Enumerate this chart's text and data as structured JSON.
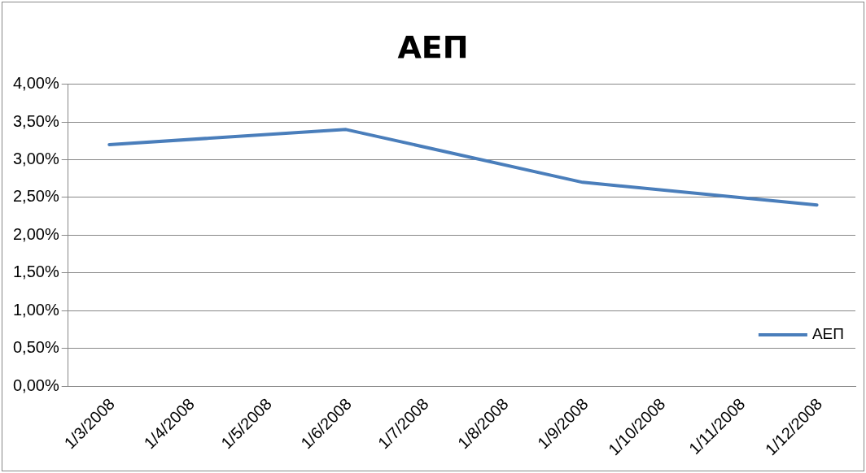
{
  "chart_data": {
    "type": "line",
    "title": "ΑΕΠ",
    "x": [
      "2008-03-01",
      "2008-06-01",
      "2008-09-01",
      "2008-12-01"
    ],
    "series": [
      {
        "name": "ΑΕΠ",
        "color": "#4a7ebb",
        "values": [
          3.2,
          3.4,
          2.7,
          2.4
        ]
      }
    ],
    "xlim": [
      "2008-02-14",
      "2008-12-16"
    ],
    "xticks": [
      {
        "value": "2008-03-01",
        "label": "1/3/2008"
      },
      {
        "value": "2008-04-01",
        "label": "1/4/2008"
      },
      {
        "value": "2008-05-01",
        "label": "1/5/2008"
      },
      {
        "value": "2008-06-01",
        "label": "1/6/2008"
      },
      {
        "value": "2008-07-01",
        "label": "1/7/2008"
      },
      {
        "value": "2008-08-01",
        "label": "1/8/2008"
      },
      {
        "value": "2008-09-01",
        "label": "1/9/2008"
      },
      {
        "value": "2008-10-01",
        "label": "1/10/2008"
      },
      {
        "value": "2008-11-01",
        "label": "1/11/2008"
      },
      {
        "value": "2008-12-01",
        "label": "1/12/2008"
      }
    ],
    "ylim": [
      0,
      4
    ],
    "yticks": [
      {
        "value": 0,
        "label": "0,00%"
      },
      {
        "value": 0.5,
        "label": "0,50%"
      },
      {
        "value": 1,
        "label": "1,00%"
      },
      {
        "value": 1.5,
        "label": "1,50%"
      },
      {
        "value": 2,
        "label": "2,00%"
      },
      {
        "value": 2.5,
        "label": "2,50%"
      },
      {
        "value": 3,
        "label": "3,00%"
      },
      {
        "value": 3.5,
        "label": "3,50%"
      },
      {
        "value": 4,
        "label": "4,00%"
      }
    ],
    "grid": "y",
    "legend": "right",
    "marker": "none",
    "line_style": "solid"
  }
}
